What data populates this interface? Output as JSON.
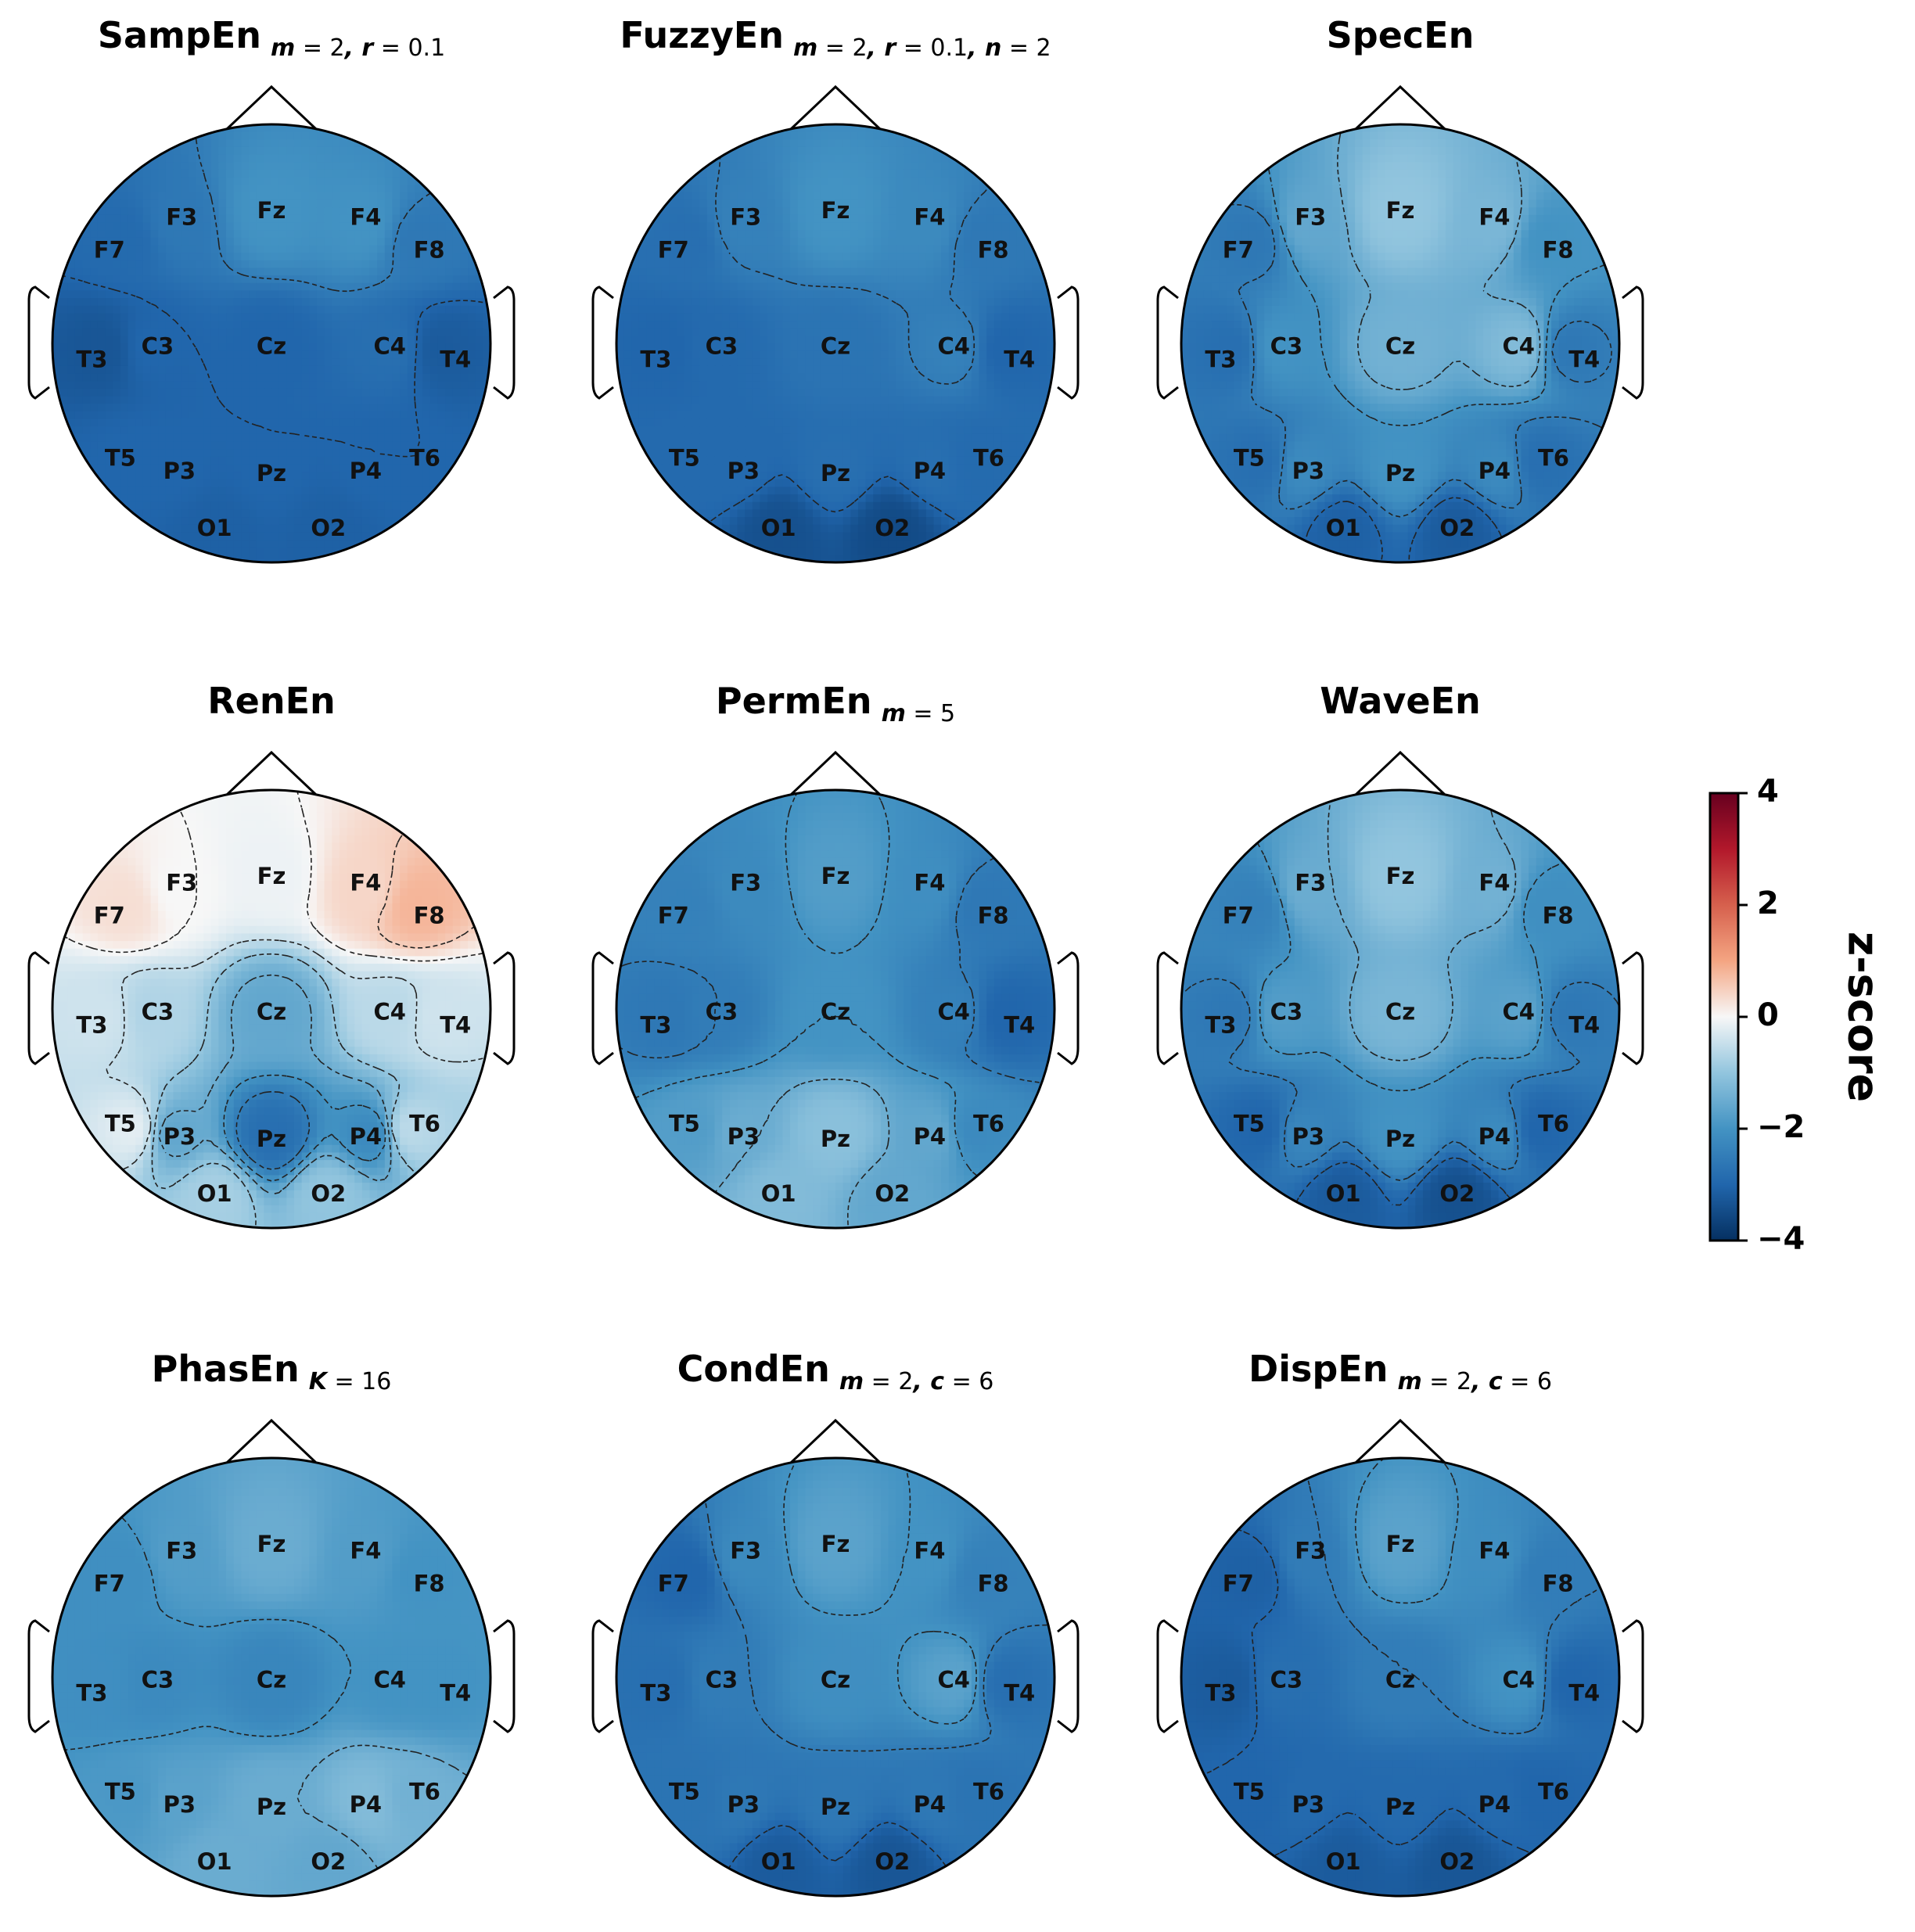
{
  "chart_data": {
    "type": "heatmap",
    "subtype": "eeg-topographic-map-grid",
    "colormap": "RdBu_r",
    "colorbar": {
      "label": "z-score",
      "range": [
        -4,
        4
      ],
      "ticks": [
        "4",
        "2",
        "0",
        "−2",
        "−4"
      ],
      "tick_values": [
        4,
        2,
        0,
        -2,
        -4
      ],
      "placement": "right",
      "colors": {
        "top": "#67001f",
        "mid": "#f7f7f7",
        "bottom": "#053061"
      }
    },
    "electrodes": [
      "F7",
      "F3",
      "Fz",
      "F4",
      "F8",
      "T3",
      "C3",
      "Cz",
      "C4",
      "T4",
      "T5",
      "P3",
      "Pz",
      "P4",
      "T6",
      "O1",
      "O2"
    ],
    "panels": [
      {
        "name": "SampEn",
        "params": [
          [
            "m",
            "2"
          ],
          [
            "r",
            "0.1"
          ]
        ],
        "values": {
          "F7": -2.9,
          "F3": -2.6,
          "Fz": -2.0,
          "F4": -2.0,
          "F8": -2.6,
          "T3": -3.3,
          "C3": -3.0,
          "Cz": -3.0,
          "C4": -2.8,
          "T4": -3.2,
          "T5": -3.0,
          "P3": -3.0,
          "Pz": -3.0,
          "P4": -3.0,
          "T6": -3.0,
          "O1": -3.1,
          "O2": -3.1
        }
      },
      {
        "name": "FuzzyEn",
        "params": [
          [
            "m",
            "2"
          ],
          [
            "r",
            "0.1"
          ],
          [
            "n",
            "2"
          ]
        ],
        "values": {
          "F7": -2.8,
          "F3": -2.4,
          "Fz": -2.0,
          "F4": -2.2,
          "F8": -2.6,
          "T3": -3.0,
          "C3": -2.9,
          "Cz": -2.7,
          "C4": -2.4,
          "T4": -3.0,
          "T5": -2.9,
          "P3": -2.9,
          "Pz": -2.8,
          "P4": -2.8,
          "T6": -2.9,
          "O1": -3.4,
          "O2": -3.5
        }
      },
      {
        "name": "SpecEn",
        "params": [],
        "values": {
          "F7": -2.6,
          "F3": -1.6,
          "Fz": -1.0,
          "F4": -1.3,
          "F8": -2.0,
          "T3": -2.8,
          "C3": -2.0,
          "Cz": -1.4,
          "C4": -1.2,
          "T4": -2.6,
          "T5": -2.8,
          "P3": -2.2,
          "Pz": -2.0,
          "P4": -2.2,
          "T6": -2.8,
          "O1": -3.1,
          "O2": -3.2
        }
      },
      {
        "name": "RenEn",
        "params": [],
        "values": {
          "F7": 0.3,
          "F3": 0.0,
          "Fz": -0.1,
          "F4": 0.4,
          "F8": 0.8,
          "T3": -0.4,
          "C3": -0.7,
          "Cz": -1.6,
          "C4": -0.6,
          "T4": -0.4,
          "T5": -0.2,
          "P3": -1.6,
          "Pz": -2.8,
          "P4": -2.2,
          "T6": -0.6,
          "O1": -0.8,
          "O2": -1.0
        }
      },
      {
        "name": "PermEn",
        "params": [
          [
            "m",
            "5"
          ]
        ],
        "values": {
          "F7": -2.4,
          "F3": -2.2,
          "Fz": -1.8,
          "F4": -2.1,
          "F8": -2.6,
          "T3": -2.6,
          "C3": -2.5,
          "Cz": -2.0,
          "C4": -2.4,
          "T4": -3.0,
          "T5": -1.8,
          "P3": -1.5,
          "Pz": -1.1,
          "P4": -1.6,
          "T6": -2.2,
          "O1": -1.2,
          "O2": -1.6
        }
      },
      {
        "name": "WaveEn",
        "params": [],
        "values": {
          "F7": -2.4,
          "F3": -1.5,
          "Fz": -1.0,
          "F4": -1.4,
          "F8": -2.1,
          "T3": -2.6,
          "C3": -1.8,
          "Cz": -1.3,
          "C4": -1.7,
          "T4": -2.6,
          "T5": -3.0,
          "P3": -2.3,
          "Pz": -2.0,
          "P4": -2.2,
          "T6": -3.0,
          "O1": -3.2,
          "O2": -3.4
        }
      },
      {
        "name": "PhasEn",
        "params": [
          [
            "K",
            "16"
          ]
        ],
        "values": {
          "F7": -2.1,
          "F3": -1.8,
          "Fz": -1.5,
          "F4": -1.8,
          "F8": -2.0,
          "T3": -2.1,
          "C3": -2.2,
          "Cz": -2.3,
          "C4": -2.0,
          "T4": -2.0,
          "T5": -1.9,
          "P3": -1.7,
          "Pz": -1.5,
          "P4": -1.2,
          "T6": -1.4,
          "O1": -1.5,
          "O2": -1.6
        }
      },
      {
        "name": "CondEn",
        "params": [
          [
            "m",
            "2"
          ],
          [
            "c",
            "6"
          ]
        ],
        "values": {
          "F7": -3.0,
          "F3": -2.2,
          "Fz": -1.7,
          "F4": -2.0,
          "F8": -2.4,
          "T3": -2.8,
          "C3": -2.5,
          "Cz": -2.1,
          "C4": -1.7,
          "T4": -2.8,
          "T5": -2.7,
          "P3": -2.6,
          "Pz": -2.6,
          "P4": -2.6,
          "T6": -2.7,
          "O1": -3.2,
          "O2": -3.3
        }
      },
      {
        "name": "DispEn",
        "params": [
          [
            "m",
            "2"
          ],
          [
            "c",
            "6"
          ]
        ],
        "values": {
          "F7": -3.1,
          "F3": -2.5,
          "Fz": -1.7,
          "F4": -2.1,
          "F8": -2.5,
          "T3": -3.2,
          "C3": -2.8,
          "Cz": -2.5,
          "C4": -2.0,
          "T4": -3.0,
          "T5": -3.0,
          "P3": -2.9,
          "Pz": -2.9,
          "P4": -2.9,
          "T6": -3.0,
          "O1": -3.2,
          "O2": -3.3
        }
      }
    ]
  }
}
